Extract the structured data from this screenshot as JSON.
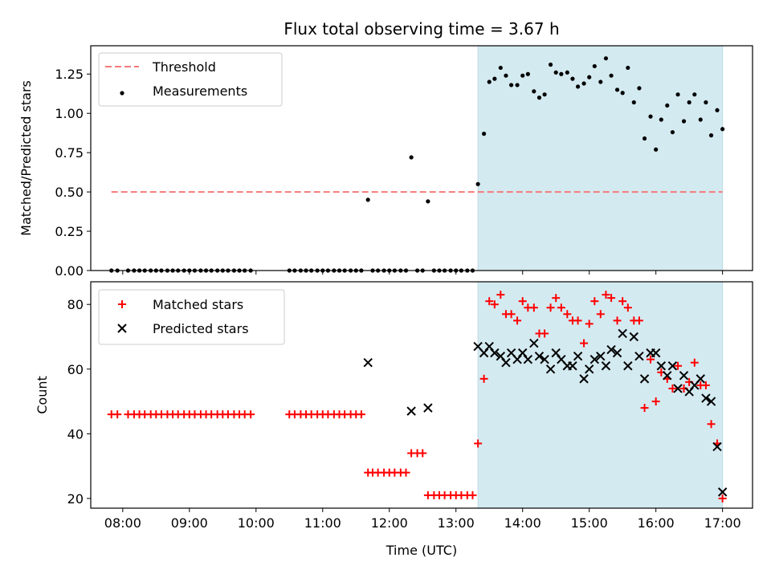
{
  "colors": {
    "shade": "#d4eaf1",
    "shade_edge": "#b9dbe6",
    "threshold": "#f47a7a",
    "measurement": "#000000",
    "matched": "#ff0000",
    "predicted": "#000000"
  },
  "chart_data": [
    {
      "type": "scatter",
      "title": "Flux total observing time = 3.67 h",
      "xlabel": "",
      "ylabel": "Matched/Predicted stars",
      "xlim": [
        7.52,
        17.45
      ],
      "ylim": [
        0,
        1.43
      ],
      "yticks": [
        0.0,
        0.25,
        0.5,
        0.75,
        1.0,
        1.25
      ],
      "ytick_labels": [
        "0.00",
        "0.25",
        "0.50",
        "0.75",
        "1.00",
        "1.25"
      ],
      "shaded_region": [
        13.33,
        17.0
      ],
      "threshold": {
        "name": "Threshold",
        "value": 0.5,
        "x": [
          7.83,
          17.0
        ]
      },
      "legend": [
        "Threshold",
        "Measurements"
      ],
      "legend_position": "top-left",
      "series": [
        {
          "name": "Measurements",
          "x": [
            7.83,
            7.92,
            8.08,
            8.17,
            8.25,
            8.33,
            8.42,
            8.5,
            8.58,
            8.67,
            8.75,
            8.83,
            8.92,
            9.0,
            9.08,
            9.17,
            9.25,
            9.33,
            9.42,
            9.5,
            9.58,
            9.67,
            9.75,
            9.83,
            9.92,
            10.5,
            10.58,
            10.67,
            10.75,
            10.83,
            10.92,
            11.0,
            11.08,
            11.17,
            11.25,
            11.33,
            11.42,
            11.5,
            11.58,
            11.68,
            11.75,
            11.83,
            11.92,
            12.0,
            12.08,
            12.17,
            12.25,
            12.33,
            12.42,
            12.5,
            12.58,
            12.67,
            12.75,
            12.83,
            12.92,
            13.0,
            13.08,
            13.17,
            13.25,
            13.33,
            13.42,
            13.5,
            13.58,
            13.67,
            13.75,
            13.83,
            13.92,
            14.0,
            14.08,
            14.17,
            14.25,
            14.33,
            14.42,
            14.5,
            14.58,
            14.67,
            14.75,
            14.83,
            14.92,
            15.0,
            15.08,
            15.17,
            15.25,
            15.33,
            15.42,
            15.5,
            15.58,
            15.67,
            15.75,
            15.83,
            15.92,
            16.0,
            16.08,
            16.17,
            16.25,
            16.33,
            16.42,
            16.5,
            16.58,
            16.67,
            16.75,
            16.83,
            16.92,
            17.0
          ],
          "values": [
            0,
            0,
            0,
            0,
            0,
            0,
            0,
            0,
            0,
            0,
            0,
            0,
            0,
            0,
            0,
            0,
            0,
            0,
            0,
            0,
            0,
            0,
            0,
            0,
            0,
            0,
            0,
            0,
            0,
            0,
            0,
            0,
            0,
            0,
            0,
            0,
            0,
            0,
            0,
            0.45,
            0,
            0,
            0,
            0,
            0,
            0,
            0,
            0.72,
            0,
            0,
            0.44,
            0,
            0,
            0,
            0,
            0,
            0,
            0,
            0,
            0.55,
            0.87,
            1.2,
            1.22,
            1.29,
            1.24,
            1.18,
            1.18,
            1.24,
            1.25,
            1.14,
            1.1,
            1.12,
            1.31,
            1.26,
            1.25,
            1.26,
            1.22,
            1.17,
            1.19,
            1.23,
            1.3,
            1.2,
            1.35,
            1.24,
            1.15,
            1.13,
            1.29,
            1.07,
            1.16,
            0.84,
            0.98,
            0.77,
            0.96,
            1.05,
            0.88,
            1.12,
            0.95,
            1.07,
            1.12,
            0.96,
            1.07,
            0.86,
            1.02,
            0.9
          ]
        }
      ]
    },
    {
      "type": "scatter",
      "title": "",
      "xlabel": "Time (UTC)",
      "ylabel": "Count",
      "xlim": [
        7.52,
        17.45
      ],
      "ylim": [
        17,
        87
      ],
      "yticks": [
        20,
        40,
        60,
        80
      ],
      "ytick_labels": [
        "20",
        "40",
        "60",
        "80"
      ],
      "xticks": [
        8,
        9,
        10,
        11,
        12,
        13,
        14,
        15,
        16,
        17
      ],
      "xtick_labels": [
        "08:00",
        "09:00",
        "10:00",
        "11:00",
        "12:00",
        "13:00",
        "14:00",
        "15:00",
        "16:00",
        "17:00"
      ],
      "shaded_region": [
        13.33,
        17.0
      ],
      "legend": [
        "Matched stars",
        "Predicted stars"
      ],
      "legend_position": "top-left",
      "series": [
        {
          "name": "Matched stars",
          "x": [
            7.83,
            7.92,
            8.08,
            8.17,
            8.25,
            8.33,
            8.42,
            8.5,
            8.58,
            8.67,
            8.75,
            8.83,
            8.92,
            9.0,
            9.08,
            9.17,
            9.25,
            9.33,
            9.42,
            9.5,
            9.58,
            9.67,
            9.75,
            9.83,
            9.92,
            10.5,
            10.58,
            10.67,
            10.75,
            10.83,
            10.92,
            11.0,
            11.08,
            11.17,
            11.25,
            11.33,
            11.42,
            11.5,
            11.58,
            11.68,
            11.75,
            11.83,
            11.92,
            12.0,
            12.08,
            12.17,
            12.25,
            12.33,
            12.42,
            12.5,
            12.58,
            12.67,
            12.75,
            12.83,
            12.92,
            13.0,
            13.08,
            13.17,
            13.25,
            13.33,
            13.42,
            13.5,
            13.58,
            13.67,
            13.75,
            13.83,
            13.92,
            14.0,
            14.08,
            14.17,
            14.25,
            14.33,
            14.42,
            14.5,
            14.58,
            14.67,
            14.75,
            14.83,
            14.92,
            15.0,
            15.08,
            15.17,
            15.25,
            15.33,
            15.42,
            15.5,
            15.58,
            15.67,
            15.75,
            15.83,
            15.92,
            16.0,
            16.08,
            16.17,
            16.25,
            16.33,
            16.42,
            16.5,
            16.58,
            16.67,
            16.75,
            16.83,
            16.92,
            17.0
          ],
          "values": [
            46,
            46,
            46,
            46,
            46,
            46,
            46,
            46,
            46,
            46,
            46,
            46,
            46,
            46,
            46,
            46,
            46,
            46,
            46,
            46,
            46,
            46,
            46,
            46,
            46,
            46,
            46,
            46,
            46,
            46,
            46,
            46,
            46,
            46,
            46,
            46,
            46,
            46,
            46,
            28,
            28,
            28,
            28,
            28,
            28,
            28,
            28,
            34,
            34,
            34,
            21,
            21,
            21,
            21,
            21,
            21,
            21,
            21,
            21,
            37,
            57,
            81,
            80,
            83,
            77,
            77,
            75,
            81,
            79,
            79,
            71,
            71,
            79,
            82,
            79,
            77,
            75,
            75,
            68,
            74,
            81,
            77,
            83,
            82,
            75,
            81,
            79,
            75,
            75,
            48,
            63,
            50,
            59,
            57,
            54,
            61,
            54,
            56,
            62,
            55,
            55,
            43,
            37,
            20
          ]
        },
        {
          "name": "Predicted stars",
          "x": [
            11.68,
            12.33,
            12.58,
            13.33,
            13.42,
            13.5,
            13.58,
            13.67,
            13.75,
            13.83,
            13.92,
            14.0,
            14.08,
            14.17,
            14.25,
            14.33,
            14.42,
            14.5,
            14.58,
            14.67,
            14.75,
            14.83,
            14.92,
            15.0,
            15.08,
            15.17,
            15.25,
            15.33,
            15.42,
            15.5,
            15.58,
            15.67,
            15.75,
            15.83,
            15.92,
            16.0,
            16.08,
            16.17,
            16.25,
            16.33,
            16.42,
            16.5,
            16.58,
            16.67,
            16.75,
            16.83,
            16.92,
            17.0
          ],
          "values": [
            62,
            47,
            48,
            67,
            65,
            67,
            65,
            64,
            62,
            65,
            63,
            65,
            63,
            68,
            64,
            63,
            60,
            65,
            63,
            61,
            61,
            64,
            57,
            60,
            63,
            64,
            61,
            66,
            65,
            71,
            61,
            70,
            64,
            57,
            65,
            65,
            61,
            58,
            61,
            54,
            58,
            53,
            55,
            57,
            51,
            50,
            36,
            22
          ]
        }
      ]
    }
  ]
}
